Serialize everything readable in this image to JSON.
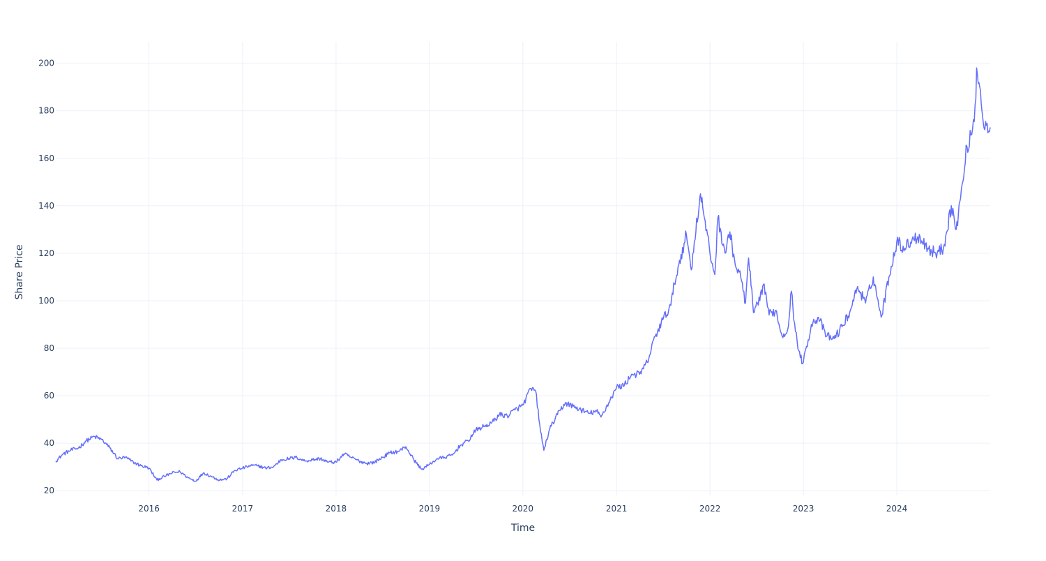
{
  "chart_data": {
    "type": "line",
    "title": "",
    "xlabel": "Time",
    "ylabel": "Share Price",
    "grid": true,
    "legend": "none",
    "line_color": "#636efa",
    "xlim": [
      "2015-01-02",
      "2024-12-31"
    ],
    "ylim": [
      18,
      209
    ],
    "x_ticks": [
      "2016",
      "2017",
      "2018",
      "2019",
      "2020",
      "2021",
      "2022",
      "2023",
      "2024"
    ],
    "y_ticks": [
      20,
      40,
      60,
      80,
      100,
      120,
      140,
      160,
      180,
      200
    ],
    "series": [
      {
        "points": [
          [
            "2015-01-02",
            32.5
          ],
          [
            "2015-02-01",
            35.5
          ],
          [
            "2015-03-01",
            37.0
          ],
          [
            "2015-04-01",
            38.0
          ],
          [
            "2015-05-01",
            41.0
          ],
          [
            "2015-06-01",
            42.8
          ],
          [
            "2015-07-01",
            41.5
          ],
          [
            "2015-08-01",
            38.0
          ],
          [
            "2015-09-01",
            33.5
          ],
          [
            "2015-10-01",
            34.0
          ],
          [
            "2015-11-01",
            32.0
          ],
          [
            "2015-12-01",
            30.5
          ],
          [
            "2016-01-01",
            29.5
          ],
          [
            "2016-02-01",
            24.5
          ],
          [
            "2016-03-01",
            26.0
          ],
          [
            "2016-04-01",
            27.5
          ],
          [
            "2016-05-01",
            28.0
          ],
          [
            "2016-06-01",
            25.5
          ],
          [
            "2016-07-01",
            24.0
          ],
          [
            "2016-08-01",
            27.5
          ],
          [
            "2016-09-01",
            26.0
          ],
          [
            "2016-10-01",
            24.5
          ],
          [
            "2016-11-01",
            25.0
          ],
          [
            "2016-12-01",
            28.5
          ],
          [
            "2017-01-01",
            29.5
          ],
          [
            "2017-02-01",
            30.5
          ],
          [
            "2017-03-01",
            30.5
          ],
          [
            "2017-04-01",
            29.5
          ],
          [
            "2017-05-01",
            30.0
          ],
          [
            "2017-06-01",
            33.0
          ],
          [
            "2017-07-01",
            33.5
          ],
          [
            "2017-08-01",
            34.0
          ],
          [
            "2017-09-01",
            32.5
          ],
          [
            "2017-10-01",
            33.0
          ],
          [
            "2017-11-01",
            33.5
          ],
          [
            "2017-12-01",
            32.0
          ],
          [
            "2018-01-01",
            32.0
          ],
          [
            "2018-02-01",
            35.5
          ],
          [
            "2018-03-01",
            34.0
          ],
          [
            "2018-04-01",
            32.5
          ],
          [
            "2018-05-01",
            31.5
          ],
          [
            "2018-06-01",
            32.0
          ],
          [
            "2018-07-01",
            34.0
          ],
          [
            "2018-08-01",
            36.0
          ],
          [
            "2018-09-01",
            36.5
          ],
          [
            "2018-10-01",
            38.5
          ],
          [
            "2018-11-01",
            33.0
          ],
          [
            "2018-12-01",
            29.0
          ],
          [
            "2019-01-01",
            31.0
          ],
          [
            "2019-02-01",
            33.5
          ],
          [
            "2019-03-01",
            34.0
          ],
          [
            "2019-04-01",
            35.0
          ],
          [
            "2019-05-01",
            39.0
          ],
          [
            "2019-06-01",
            41.0
          ],
          [
            "2019-07-01",
            45.5
          ],
          [
            "2019-08-01",
            47.0
          ],
          [
            "2019-09-01",
            48.5
          ],
          [
            "2019-10-01",
            52.0
          ],
          [
            "2019-11-01",
            51.5
          ],
          [
            "2019-12-01",
            54.0
          ],
          [
            "2020-01-01",
            56.0
          ],
          [
            "2020-02-01",
            63.0
          ],
          [
            "2020-02-20",
            62.0
          ],
          [
            "2020-03-10",
            45.0
          ],
          [
            "2020-03-23",
            37.0
          ],
          [
            "2020-04-15",
            46.0
          ],
          [
            "2020-05-15",
            52.0
          ],
          [
            "2020-06-15",
            57.0
          ],
          [
            "2020-07-15",
            55.5
          ],
          [
            "2020-08-15",
            54.0
          ],
          [
            "2020-09-15",
            52.5
          ],
          [
            "2020-10-15",
            53.5
          ],
          [
            "2020-11-01",
            51.0
          ],
          [
            "2020-12-01",
            57.0
          ],
          [
            "2021-01-01",
            63.5
          ],
          [
            "2021-02-01",
            64.5
          ],
          [
            "2021-03-01",
            69.0
          ],
          [
            "2021-04-01",
            69.0
          ],
          [
            "2021-05-01",
            74.0
          ],
          [
            "2021-06-01",
            85.0
          ],
          [
            "2021-07-01",
            92.0
          ],
          [
            "2021-08-01",
            98.0
          ],
          [
            "2021-08-15",
            107.0
          ],
          [
            "2021-09-01",
            115.0
          ],
          [
            "2021-10-01",
            128.0
          ],
          [
            "2021-10-20",
            113.0
          ],
          [
            "2021-11-01",
            125.0
          ],
          [
            "2021-11-25",
            145.0
          ],
          [
            "2021-12-10",
            135.0
          ],
          [
            "2022-01-01",
            120.0
          ],
          [
            "2022-01-20",
            111.0
          ],
          [
            "2022-02-01",
            135.0
          ],
          [
            "2022-03-01",
            120.0
          ],
          [
            "2022-03-20",
            129.0
          ],
          [
            "2022-04-10",
            115.0
          ],
          [
            "2022-05-01",
            110.0
          ],
          [
            "2022-05-20",
            99.0
          ],
          [
            "2022-06-01",
            118.0
          ],
          [
            "2022-06-20",
            95.0
          ],
          [
            "2022-07-15",
            100.0
          ],
          [
            "2022-08-01",
            107.0
          ],
          [
            "2022-08-20",
            94.0
          ],
          [
            "2022-09-15",
            96.0
          ],
          [
            "2022-10-10",
            85.0
          ],
          [
            "2022-11-01",
            88.0
          ],
          [
            "2022-11-15",
            104.0
          ],
          [
            "2022-12-01",
            87.0
          ],
          [
            "2022-12-20",
            76.0
          ],
          [
            "2023-01-01",
            74.0
          ],
          [
            "2023-02-01",
            90.0
          ],
          [
            "2023-03-01",
            93.0
          ],
          [
            "2023-04-01",
            85.0
          ],
          [
            "2023-05-01",
            84.0
          ],
          [
            "2023-06-01",
            89.0
          ],
          [
            "2023-07-01",
            95.0
          ],
          [
            "2023-08-01",
            106.0
          ],
          [
            "2023-09-01",
            99.0
          ],
          [
            "2023-10-01",
            110.0
          ],
          [
            "2023-11-01",
            93.0
          ],
          [
            "2023-12-01",
            110.0
          ],
          [
            "2024-01-01",
            125.0
          ],
          [
            "2024-02-01",
            122.0
          ],
          [
            "2024-03-01",
            126.0
          ],
          [
            "2024-04-01",
            127.0
          ],
          [
            "2024-05-01",
            122.0
          ],
          [
            "2024-06-01",
            120.0
          ],
          [
            "2024-07-01",
            122.0
          ],
          [
            "2024-08-01",
            140.0
          ],
          [
            "2024-08-20",
            130.0
          ],
          [
            "2024-09-15",
            150.0
          ],
          [
            "2024-10-01",
            165.0
          ],
          [
            "2024-10-20",
            170.0
          ],
          [
            "2024-11-05",
            185.0
          ],
          [
            "2024-11-08",
            198.0
          ],
          [
            "2024-11-20",
            190.0
          ],
          [
            "2024-12-10",
            172.0
          ],
          [
            "2024-12-31",
            173.0
          ]
        ]
      }
    ]
  }
}
